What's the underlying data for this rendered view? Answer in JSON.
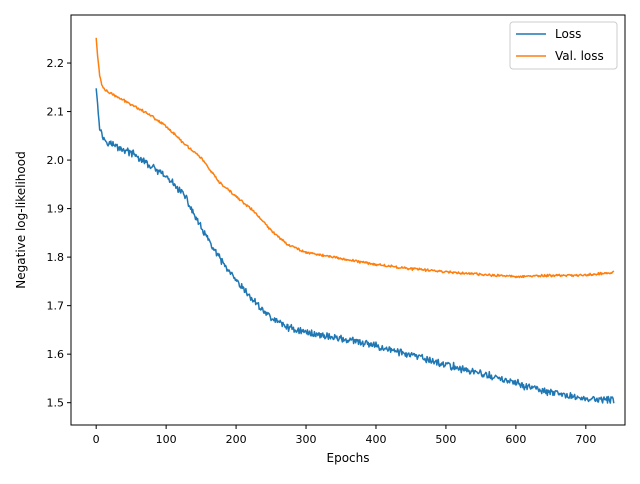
{
  "chart_data": {
    "type": "line",
    "title": "",
    "xlabel": "Epochs",
    "ylabel": "Negative log-likelihood",
    "xlim": [
      -36,
      756
    ],
    "ylim": [
      1.454,
      2.299
    ],
    "xticks": [
      0,
      100,
      200,
      300,
      400,
      500,
      600,
      700
    ],
    "yticks": [
      1.5,
      1.6,
      1.7,
      1.8,
      1.9,
      2.0,
      2.1,
      2.2
    ],
    "ytick_labels": [
      "1.5",
      "1.6",
      "1.7",
      "1.8",
      "1.9",
      "2.0",
      "2.1",
      "2.2"
    ],
    "grid": false,
    "legend_position": "top-right",
    "series": [
      {
        "name": "Loss",
        "color": "#1f77b4",
        "points": [
          [
            0,
            2.148
          ],
          [
            5,
            2.07
          ],
          [
            10,
            2.045
          ],
          [
            20,
            2.035
          ],
          [
            30,
            2.027
          ],
          [
            50,
            2.015
          ],
          [
            75,
            1.99
          ],
          [
            100,
            1.965
          ],
          [
            125,
            1.93
          ],
          [
            150,
            1.86
          ],
          [
            175,
            1.8
          ],
          [
            200,
            1.75
          ],
          [
            225,
            1.71
          ],
          [
            250,
            1.675
          ],
          [
            275,
            1.655
          ],
          [
            300,
            1.645
          ],
          [
            350,
            1.632
          ],
          [
            400,
            1.617
          ],
          [
            450,
            1.598
          ],
          [
            500,
            1.578
          ],
          [
            550,
            1.56
          ],
          [
            600,
            1.54
          ],
          [
            650,
            1.52
          ],
          [
            700,
            1.508
          ],
          [
            740,
            1.505
          ]
        ],
        "noise": 0.006
      },
      {
        "name": "Val. loss",
        "color": "#ff7f0e",
        "points": [
          [
            0,
            2.252
          ],
          [
            2,
            2.215
          ],
          [
            5,
            2.175
          ],
          [
            8,
            2.155
          ],
          [
            12,
            2.145
          ],
          [
            20,
            2.138
          ],
          [
            30,
            2.13
          ],
          [
            50,
            2.115
          ],
          [
            75,
            2.095
          ],
          [
            100,
            2.07
          ],
          [
            125,
            2.035
          ],
          [
            150,
            2.005
          ],
          [
            175,
            1.955
          ],
          [
            200,
            1.925
          ],
          [
            225,
            1.895
          ],
          [
            250,
            1.855
          ],
          [
            275,
            1.825
          ],
          [
            300,
            1.81
          ],
          [
            350,
            1.797
          ],
          [
            400,
            1.785
          ],
          [
            450,
            1.776
          ],
          [
            500,
            1.77
          ],
          [
            550,
            1.764
          ],
          [
            600,
            1.76
          ],
          [
            650,
            1.762
          ],
          [
            700,
            1.763
          ],
          [
            740,
            1.769
          ]
        ],
        "noise": 0.002
      }
    ]
  }
}
